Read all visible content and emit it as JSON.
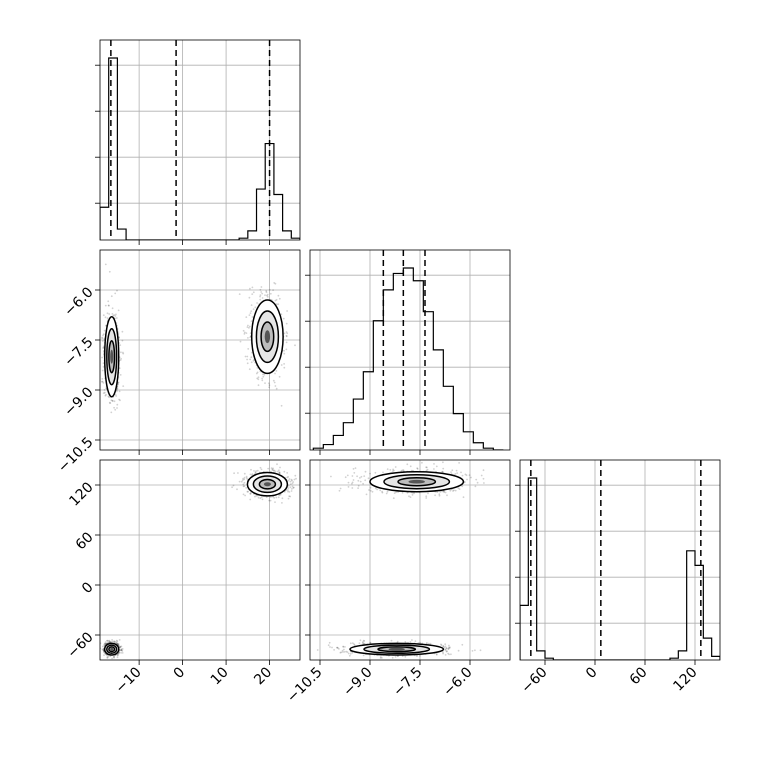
{
  "chart_data": {
    "type": "corner",
    "grid": true,
    "parameters": [
      {
        "range": [
          -19,
          27
        ],
        "ticks": [
          -10,
          0,
          10,
          20
        ],
        "tick_labels": [
          "−10",
          "0",
          "10",
          "20"
        ]
      },
      {
        "range": [
          -10.8,
          -4.8
        ],
        "ticks": [
          -10.5,
          -9.0,
          -7.5,
          -6.0
        ],
        "tick_labels": [
          "−10.5",
          "−9.0",
          "−7.5",
          "−6.0"
        ]
      },
      {
        "range": [
          -90,
          150
        ],
        "ticks": [
          -60,
          0,
          60,
          120
        ],
        "tick_labels": [
          "−60",
          "0",
          "60",
          "120"
        ]
      }
    ],
    "histograms": [
      {
        "param": 0,
        "edges": [
          -19,
          -17,
          -15,
          -13,
          -11,
          -9,
          -7,
          -5,
          -3,
          -1,
          1,
          3,
          5,
          7,
          9,
          11,
          13,
          15,
          17,
          19,
          21,
          23,
          25,
          27
        ],
        "counts": [
          0.18,
          1.0,
          0.06,
          0,
          0,
          0,
          0,
          0,
          0,
          0,
          0,
          0,
          0,
          0,
          0,
          0,
          0.01,
          0.05,
          0.28,
          0.53,
          0.25,
          0.05,
          0.01
        ],
        "quantiles": [
          -16.5,
          -1.5,
          20.0
        ]
      },
      {
        "param": 1,
        "edges": [
          -10.7,
          -10.4,
          -10.1,
          -9.8,
          -9.5,
          -9.2,
          -8.9,
          -8.6,
          -8.3,
          -8.0,
          -7.7,
          -7.4,
          -7.1,
          -6.8,
          -6.5,
          -6.2,
          -5.9,
          -5.6,
          -5.3,
          -5.0
        ],
        "counts": [
          0.01,
          0.03,
          0.08,
          0.15,
          0.28,
          0.43,
          0.71,
          0.88,
          0.97,
          1.0,
          0.93,
          0.76,
          0.55,
          0.35,
          0.2,
          0.1,
          0.04,
          0.01,
          0.0
        ],
        "quantiles": [
          -8.6,
          -8.0,
          -7.35
        ]
      },
      {
        "param": 2,
        "edges": [
          -90,
          -80,
          -70,
          -60,
          -50,
          -40,
          -30,
          -20,
          -10,
          0,
          10,
          20,
          30,
          40,
          50,
          60,
          70,
          80,
          90,
          100,
          110,
          120,
          130,
          140,
          150
        ],
        "counts": [
          0.3,
          1.0,
          0.05,
          0.01,
          0,
          0,
          0,
          0,
          0,
          0,
          0,
          0,
          0,
          0,
          0,
          0,
          0,
          0,
          0.01,
          0.05,
          0.6,
          0.52,
          0.12,
          0.02
        ],
        "quantiles": [
          -77,
          7,
          127
        ]
      }
    ],
    "joint": [
      {
        "x_param": 0,
        "y_param": 1,
        "modes": [
          {
            "center": [
              -16.3,
              -8.0
            ],
            "spread": [
              0.8,
              0.6
            ],
            "weight": 0.5
          },
          {
            "center": [
              19.5,
              -7.4
            ],
            "spread": [
              1.8,
              0.55
            ],
            "weight": 0.5
          }
        ]
      },
      {
        "x_param": 0,
        "y_param": 2,
        "modes": [
          {
            "center": [
              -16.3,
              -77
            ],
            "spread": [
              0.8,
              3.5
            ],
            "weight": 0.5
          },
          {
            "center": [
              19.5,
              121
            ],
            "spread": [
              2.3,
              7
            ],
            "weight": 0.5
          }
        ]
      },
      {
        "x_param": 1,
        "y_param": 2,
        "modes": [
          {
            "center": [
              -7.6,
              124
            ],
            "spread": [
              0.7,
              6
            ],
            "weight": 0.5
          },
          {
            "center": [
              -8.2,
              -77
            ],
            "spread": [
              0.7,
              3.5
            ],
            "weight": 0.5
          }
        ]
      }
    ]
  }
}
